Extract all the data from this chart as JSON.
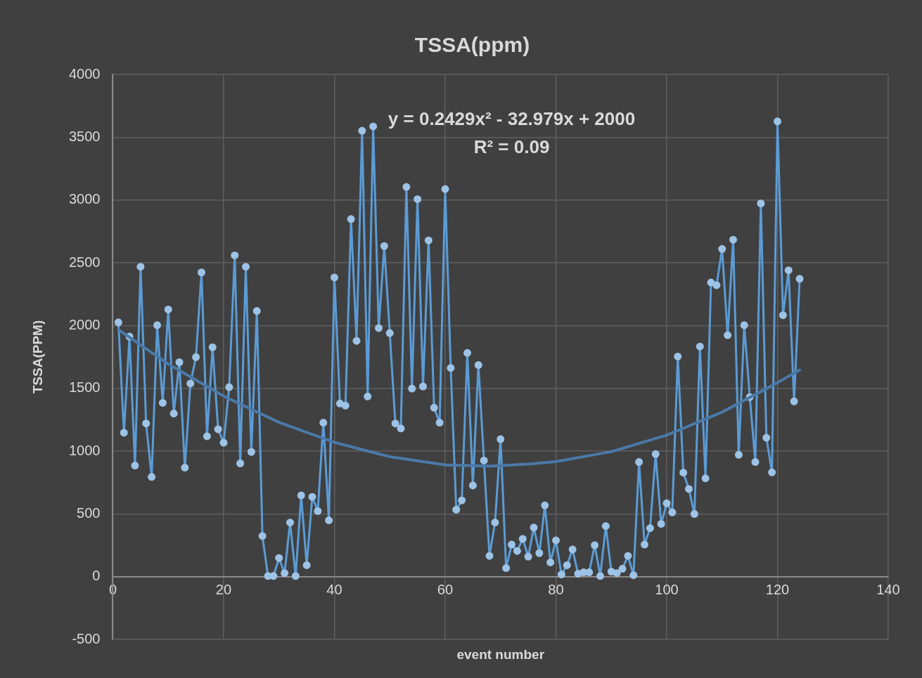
{
  "chart_data": {
    "type": "line",
    "title": "TSSA(ppm)",
    "xlabel": "event number",
    "ylabel": "TSSA(PPM)",
    "xlim": [
      0,
      140
    ],
    "xticks": [
      0,
      20,
      40,
      60,
      80,
      100,
      120,
      140
    ],
    "ylim": [
      -500,
      4000
    ],
    "yticks": [
      -500,
      0,
      500,
      1000,
      1500,
      2000,
      2500,
      3000,
      3500,
      4000
    ],
    "grid": true,
    "legend": false,
    "marker": "circle",
    "line_style": "solid",
    "annotations": [
      "y = 0.2429x² - 32.979x + 2000",
      "R² = 0.09"
    ],
    "series": [
      {
        "color": "#5b9bd5",
        "x": [
          1,
          2,
          3,
          4,
          5,
          6,
          7,
          8,
          9,
          10,
          11,
          12,
          13,
          14,
          15,
          16,
          17,
          18,
          19,
          20,
          21,
          22,
          23,
          24,
          25,
          26,
          27,
          28,
          29,
          30,
          31,
          32,
          33,
          34,
          35,
          36,
          37,
          38,
          39,
          40,
          41,
          42,
          43,
          44,
          45,
          46,
          47,
          48,
          49,
          50,
          51,
          52,
          53,
          54,
          55,
          56,
          57,
          58,
          59,
          60,
          61,
          62,
          63,
          64,
          65,
          66,
          67,
          68,
          69,
          70,
          71,
          72,
          73,
          74,
          75,
          76,
          77,
          78,
          79,
          80,
          81,
          82,
          83,
          84,
          85,
          86,
          87,
          88,
          89,
          90,
          91,
          92,
          93,
          94,
          95,
          96,
          97,
          98,
          99,
          100,
          101,
          102,
          103,
          104,
          105,
          106,
          107,
          108,
          109,
          110,
          111,
          112,
          113,
          114,
          115,
          116,
          117,
          118,
          119,
          120,
          121,
          122,
          123,
          124
        ],
        "values": [
          2025,
          1146,
          1912,
          885,
          2468,
          1220,
          794,
          2003,
          1384,
          2128,
          1299,
          1708,
          868,
          1538,
          1748,
          2423,
          1118,
          1827,
          1174,
          1067,
          1509,
          2559,
          902,
          2468,
          993,
          2116,
          323,
          5,
          5,
          148,
          28,
          431,
          5,
          647,
          91,
          635,
          522,
          1226,
          448,
          2383,
          1379,
          1362,
          2848,
          1878,
          3552,
          1435,
          3586,
          1980,
          2633,
          1940,
          1220,
          1180,
          3104,
          1498,
          3007,
          1515,
          2678,
          1345,
          1226,
          3087,
          1662,
          533,
          607,
          1782,
          726,
          1685,
          925,
          165,
          431,
          1095,
          68,
          255,
          204,
          301,
          159,
          391,
          187,
          567,
          113,
          289,
          17,
          91,
          216,
          23,
          34,
          34,
          250,
          5,
          403,
          40,
          28,
          62,
          165,
          11,
          913,
          255,
          386,
          976,
          420,
          584,
          511,
          1753,
          828,
          698,
          499,
          1833,
          783,
          2343,
          2321,
          2610,
          1923,
          2684,
          970,
          2003,
          1430,
          913,
          2973,
          1106,
          830,
          3626,
          2082,
          2440,
          1396,
          2372
        ]
      },
      {
        "type": "line",
        "color": "#4a79a8",
        "marker": "none",
        "x": [
          1,
          10,
          20,
          30,
          40,
          50,
          60,
          68,
          75,
          80,
          90,
          100,
          110,
          120,
          124
        ],
        "values": [
          1967,
          1694,
          1438,
          1229,
          1069,
          955,
          890,
          880,
          896,
          916,
          995,
          1127,
          1310,
          1545,
          1646
        ]
      }
    ]
  }
}
